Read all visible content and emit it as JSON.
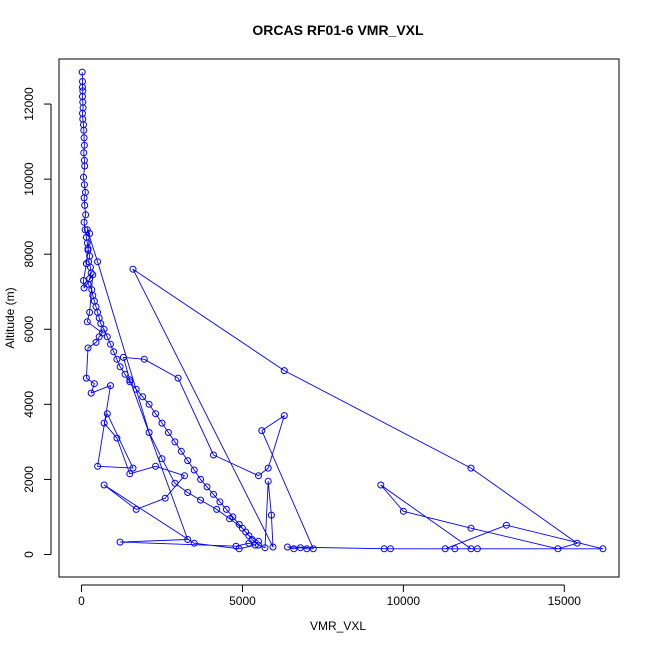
{
  "chart_data": {
    "type": "line",
    "title": "ORCAS RF01-6 VMR_VXL",
    "xlabel": "VMR_VXL",
    "ylabel": "Altitude (m)",
    "xlim": [
      -700,
      16700
    ],
    "ylim": [
      -600,
      13200
    ],
    "x_ticks": [
      0,
      5000,
      10000,
      15000
    ],
    "x_tick_labels": [
      "0",
      "5000",
      "10000",
      "15000"
    ],
    "y_ticks": [
      0,
      2000,
      4000,
      6000,
      8000,
      10000,
      12000
    ],
    "y_tick_labels": [
      "0",
      "2000",
      "4000",
      "6000",
      "8000",
      "10000",
      "12000"
    ],
    "grid": false,
    "series_color": "#0000ff",
    "series": [
      {
        "marker": "open-circle",
        "points": [
          [
            20,
            12850
          ],
          [
            30,
            12600
          ],
          [
            30,
            12450
          ],
          [
            40,
            12350
          ],
          [
            30,
            12200
          ],
          [
            40,
            12050
          ],
          [
            50,
            11900
          ],
          [
            30,
            11750
          ],
          [
            40,
            11600
          ],
          [
            60,
            11450
          ],
          [
            70,
            11300
          ],
          [
            80,
            11100
          ],
          [
            90,
            10900
          ],
          [
            70,
            10700
          ],
          [
            90,
            10500
          ],
          [
            100,
            10350
          ],
          [
            60,
            10050
          ],
          [
            90,
            9850
          ],
          [
            120,
            9650
          ],
          [
            80,
            9500
          ],
          [
            100,
            9300
          ],
          [
            130,
            9050
          ],
          [
            80,
            8850
          ],
          [
            110,
            8650
          ],
          [
            150,
            8450
          ],
          [
            180,
            8300
          ],
          [
            200,
            8150
          ],
          [
            250,
            7950
          ],
          [
            220,
            7800
          ],
          [
            280,
            7650
          ],
          [
            300,
            7500
          ],
          [
            250,
            7350
          ],
          [
            200,
            7200
          ],
          [
            320,
            7050
          ],
          [
            350,
            6900
          ],
          [
            400,
            6750
          ],
          [
            450,
            6600
          ],
          [
            500,
            6450
          ],
          [
            550,
            6300
          ],
          [
            600,
            6150
          ],
          [
            700,
            6000
          ],
          [
            800,
            5800
          ],
          [
            900,
            5600
          ],
          [
            1000,
            5400
          ],
          [
            1100,
            5200
          ],
          [
            1200,
            5000
          ],
          [
            1350,
            4800
          ],
          [
            1500,
            4600
          ],
          [
            1700,
            4400
          ],
          [
            1900,
            4200
          ],
          [
            2100,
            4000
          ],
          [
            2300,
            3750
          ],
          [
            2500,
            3500
          ],
          [
            2700,
            3250
          ],
          [
            2900,
            3000
          ],
          [
            3100,
            2750
          ],
          [
            3300,
            2500
          ],
          [
            3500,
            2250
          ],
          [
            3700,
            2000
          ],
          [
            3900,
            1800
          ],
          [
            4100,
            1600
          ],
          [
            4300,
            1400
          ],
          [
            4500,
            1200
          ],
          [
            4700,
            1000
          ],
          [
            4900,
            800
          ],
          [
            5100,
            600
          ],
          [
            5300,
            400
          ],
          [
            5500,
            250
          ],
          [
            5700,
            180
          ],
          [
            5800,
            1950
          ],
          [
            5900,
            1050
          ],
          [
            5950,
            200
          ],
          [
            1600,
            7600
          ],
          [
            6300,
            4900
          ],
          [
            12100,
            2300
          ],
          [
            15400,
            300
          ],
          [
            14800,
            150
          ],
          [
            12100,
            700
          ],
          [
            10000,
            1150
          ],
          [
            9300,
            1850
          ],
          [
            12100,
            150
          ],
          [
            16200,
            150
          ],
          [
            13200,
            780
          ],
          [
            11300,
            150
          ],
          [
            11600,
            150
          ],
          [
            12300,
            150
          ],
          [
            9400,
            150
          ],
          [
            9600,
            150
          ],
          [
            6400,
            200
          ],
          [
            6600,
            150
          ],
          [
            6800,
            180
          ],
          [
            7000,
            150
          ],
          [
            7200,
            150
          ],
          [
            5600,
            3300
          ],
          [
            6300,
            3700
          ],
          [
            5800,
            2300
          ],
          [
            5500,
            2100
          ],
          [
            4100,
            2650
          ],
          [
            3000,
            4700
          ],
          [
            1950,
            5200
          ],
          [
            1300,
            5250
          ],
          [
            1500,
            4650
          ],
          [
            3300,
            400
          ],
          [
            1200,
            330
          ],
          [
            4800,
            220
          ],
          [
            5200,
            300
          ],
          [
            5400,
            250
          ],
          [
            4900,
            150
          ],
          [
            3500,
            300
          ],
          [
            700,
            1850
          ],
          [
            1700,
            1200
          ],
          [
            2600,
            1500
          ],
          [
            3200,
            2100
          ],
          [
            2300,
            2350
          ],
          [
            1500,
            2150
          ],
          [
            1100,
            3100
          ],
          [
            700,
            3500
          ],
          [
            800,
            3750
          ],
          [
            1600,
            2300
          ],
          [
            500,
            2350
          ],
          [
            900,
            4500
          ],
          [
            300,
            4300
          ],
          [
            400,
            4550
          ],
          [
            150,
            4700
          ],
          [
            200,
            5500
          ],
          [
            450,
            5650
          ],
          [
            550,
            5800
          ],
          [
            650,
            5900
          ],
          [
            180,
            6200
          ],
          [
            250,
            6450
          ],
          [
            350,
            7450
          ],
          [
            80,
            7100
          ],
          [
            60,
            7300
          ],
          [
            150,
            7750
          ],
          [
            200,
            8100
          ],
          [
            250,
            8550
          ],
          [
            180,
            8650
          ],
          [
            500,
            7800
          ],
          [
            2100,
            3250
          ],
          [
            2500,
            2550
          ],
          [
            2900,
            1900
          ],
          [
            3300,
            1650
          ],
          [
            3700,
            1450
          ],
          [
            4200,
            1200
          ],
          [
            4600,
            950
          ],
          [
            5000,
            700
          ],
          [
            5200,
            500
          ],
          [
            5500,
            350
          ]
        ]
      }
    ]
  }
}
